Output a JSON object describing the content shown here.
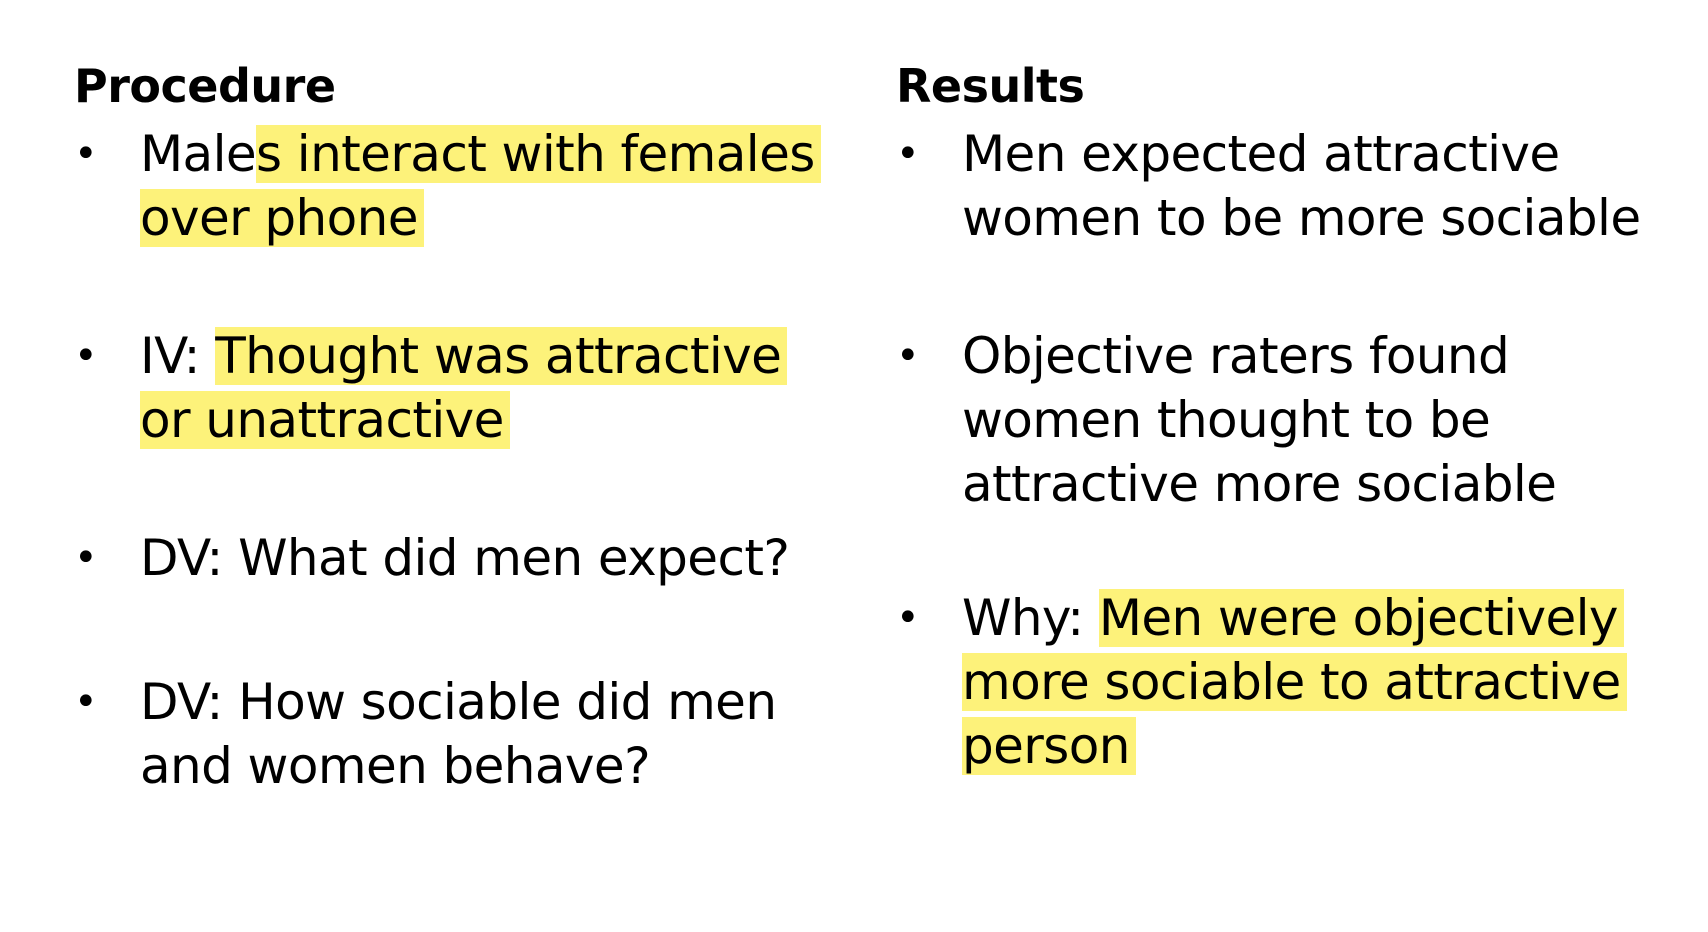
{
  "procedure": {
    "heading": "Procedure",
    "bullets": [
      {
        "plain": "Male",
        "highlight": "s interact with females over phone",
        "after": ""
      },
      {
        "plain": "IV: ",
        "highlight": "Thought was attractive or unattractive",
        "after": ""
      },
      {
        "plain": "DV: What did men expect?",
        "highlight": "",
        "after": ""
      },
      {
        "plain": "DV: How sociable did men and women behave?",
        "highlight": "",
        "after": ""
      }
    ]
  },
  "results": {
    "heading": "Results",
    "bullets": [
      {
        "plain": "Men expected attractive women to be more sociable",
        "highlight": "",
        "after": ""
      },
      {
        "plain": "Objective raters found women thought to be attractive more sociable",
        "highlight": "",
        "after": ""
      },
      {
        "plain": "Why: ",
        "highlight": "Men were objectively more sociable to attractive person",
        "after": ""
      }
    ]
  },
  "bullet_glyph": "•",
  "colors": {
    "highlight": "#fdf27a",
    "text": "#000000",
    "background": "#ffffff"
  }
}
